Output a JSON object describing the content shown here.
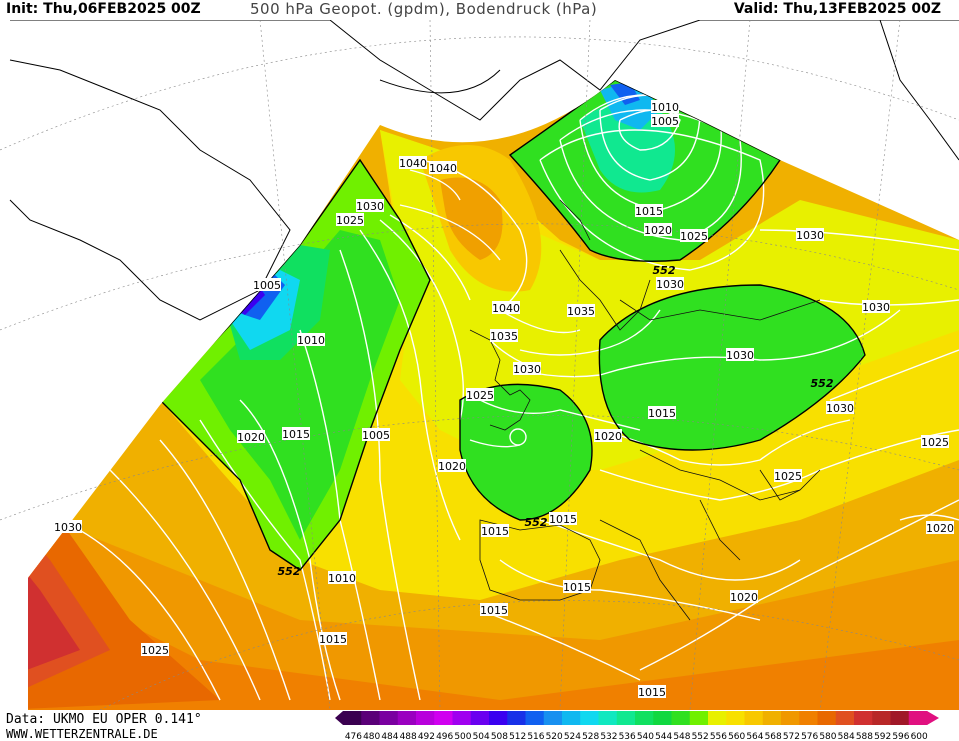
{
  "header": {
    "init": "Init: Thu,06FEB2025 00Z",
    "title": "500 hPa Geopot. (gpdm), Bodendruck (hPa)",
    "valid": "Valid: Thu,13FEB2025 00Z"
  },
  "footer": {
    "data_source": "Data: UKMO EU OPER 0.141°",
    "website": "WWW.WETTERZENTRALE.DE"
  },
  "color_scale": {
    "values": [
      "476",
      "480",
      "484",
      "488",
      "492",
      "496",
      "500",
      "504",
      "508",
      "512",
      "516",
      "520",
      "524",
      "528",
      "532",
      "536",
      "540",
      "544",
      "548",
      "552",
      "556",
      "560",
      "564",
      "568",
      "572",
      "576",
      "580",
      "584",
      "588",
      "592",
      "596",
      "600"
    ],
    "colors": [
      "#3a0050",
      "#5a0078",
      "#7a00a0",
      "#9a00c0",
      "#b800dc",
      "#d000f0",
      "#a000f0",
      "#6a00f0",
      "#3a00f0",
      "#1830e8",
      "#1060f0",
      "#1890f0",
      "#10b8f0",
      "#10d8f0",
      "#10e8c0",
      "#10e890",
      "#10e060",
      "#10d840",
      "#30e020",
      "#70f000",
      "#e8f000",
      "#f8e000",
      "#f8c800",
      "#f0b000",
      "#f09800",
      "#f08000",
      "#e86800",
      "#e05020",
      "#d03030",
      "#b82828",
      "#a01828",
      "#e01080"
    ]
  },
  "isobar_labels": [
    {
      "text": "1040"
    },
    {
      "text": "1040"
    },
    {
      "text": "1030"
    },
    {
      "text": "1025"
    },
    {
      "text": "1005"
    },
    {
      "text": "1010"
    },
    {
      "text": "1020"
    },
    {
      "text": "1015"
    },
    {
      "text": "1005"
    },
    {
      "text": "1020"
    },
    {
      "text": "1030"
    },
    {
      "text": "1025"
    },
    {
      "text": "1010"
    },
    {
      "text": "1015"
    },
    {
      "text": "1040"
    },
    {
      "text": "1035"
    },
    {
      "text": "1035"
    },
    {
      "text": "1030"
    },
    {
      "text": "1025"
    },
    {
      "text": "1020"
    },
    {
      "text": "1015"
    },
    {
      "text": "1015"
    },
    {
      "text": "1015"
    },
    {
      "text": "1015"
    },
    {
      "text": "1010"
    },
    {
      "text": "1005"
    },
    {
      "text": "1015"
    },
    {
      "text": "1020"
    },
    {
      "text": "1025"
    },
    {
      "text": "1030"
    },
    {
      "text": "1030"
    },
    {
      "text": "1030"
    },
    {
      "text": "1030"
    },
    {
      "text": "1030"
    },
    {
      "text": "1025"
    },
    {
      "text": "1025"
    },
    {
      "text": "1020"
    },
    {
      "text": "1020"
    },
    {
      "text": "1015"
    },
    {
      "text": "1025"
    },
    {
      "text": "1015"
    },
    {
      "text": "1030"
    }
  ],
  "geopotential_labels": [
    {
      "text": "552"
    },
    {
      "text": "552"
    },
    {
      "text": "552"
    },
    {
      "text": "552"
    }
  ]
}
